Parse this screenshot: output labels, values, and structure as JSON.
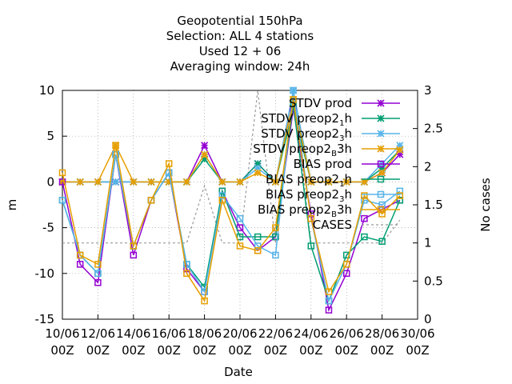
{
  "chart_data": {
    "type": "line",
    "title_lines": [
      "Geopotential 150hPa",
      "Selection: ALL      4 stations",
      "Used  12 + 06",
      "Averaging window: 24h"
    ],
    "xlabel": "Date",
    "ylabel": "m",
    "y2label": "No cases",
    "ylim": [
      -15,
      10
    ],
    "y2lim": [
      0,
      3
    ],
    "yticks": [
      -15,
      -10,
      -5,
      0,
      5,
      10
    ],
    "y2ticks": [
      0,
      0.5,
      1,
      1.5,
      2,
      2.5,
      3
    ],
    "xlim": [
      0,
      20
    ],
    "xticks": [
      {
        "x": 0,
        "l1": "10/06",
        "l2": "00Z"
      },
      {
        "x": 2,
        "l1": "12/06",
        "l2": "00Z"
      },
      {
        "x": 4,
        "l1": "14/06",
        "l2": "00Z"
      },
      {
        "x": 6,
        "l1": "16/06",
        "l2": "00Z"
      },
      {
        "x": 8,
        "l1": "18/06",
        "l2": "00Z"
      },
      {
        "x": 10,
        "l1": "20/06",
        "l2": "00Z"
      },
      {
        "x": 12,
        "l1": "22/06",
        "l2": "00Z"
      },
      {
        "x": 14,
        "l1": "24/06",
        "l2": "00Z"
      },
      {
        "x": 16,
        "l1": "26/06",
        "l2": "00Z"
      },
      {
        "x": 18,
        "l1": "28/06",
        "l2": "00Z"
      },
      {
        "x": 20,
        "l1": "30/06",
        "l2": "00Z"
      }
    ],
    "x": [
      0,
      1,
      2,
      3,
      4,
      5,
      6,
      7,
      8,
      9,
      10,
      11,
      12,
      13,
      14,
      15,
      16,
      17,
      18,
      19
    ],
    "series": [
      {
        "name": "STDV prod",
        "color": "#9400d3",
        "marker": "star",
        "dashed": false,
        "values": [
          0,
          0,
          0,
          0,
          0,
          0,
          0,
          0,
          4,
          0,
          0,
          2,
          0,
          9,
          0,
          0,
          0,
          0,
          1,
          3
        ]
      },
      {
        "name": "STDV preop2_1h",
        "color": "#009e73",
        "marker": "star",
        "dashed": false,
        "values": [
          0,
          0,
          0,
          0,
          0,
          0,
          0,
          0,
          2.5,
          0,
          0,
          2,
          0,
          8,
          0,
          0,
          0,
          0,
          1.5,
          3.5
        ]
      },
      {
        "name": "STDV preop2_3h",
        "color": "#56b4e9",
        "marker": "star",
        "dashed": false,
        "values": [
          0,
          0,
          0,
          0,
          0,
          0,
          0,
          0,
          3,
          0,
          0,
          1.5,
          0,
          10,
          0,
          0,
          0,
          0,
          2,
          4
        ]
      },
      {
        "name": "STDV preop2_B3h",
        "color": "#e69f00",
        "marker": "star",
        "dashed": false,
        "values": [
          0,
          0,
          0,
          4,
          0,
          0,
          0,
          0,
          3,
          0,
          0,
          1,
          0,
          9,
          0,
          0,
          0,
          0,
          1,
          3.5
        ]
      },
      {
        "name": "BIAS prod",
        "color": "#9400d3",
        "marker": "square",
        "dashed": false,
        "values": [
          0,
          -9,
          -11,
          3,
          -8,
          -2,
          1,
          -9.5,
          -12,
          -1,
          -5,
          -7.5,
          -6,
          8,
          -3.5,
          -14,
          -10,
          -4,
          -3,
          -2
        ]
      },
      {
        "name": "BIAS preop2_1h",
        "color": "#009e73",
        "marker": "square",
        "dashed": false,
        "values": [
          -2,
          -8,
          -10,
          3,
          -7,
          -2,
          1,
          -9,
          -11.5,
          -1,
          -6,
          -6,
          -6,
          8.5,
          -7,
          -13,
          -8,
          -6,
          -6.5,
          -2
        ]
      },
      {
        "name": "BIAS preop2_3h",
        "color": "#56b4e9",
        "marker": "square",
        "dashed": false,
        "values": [
          -2,
          -8,
          -10,
          3,
          -7,
          -2,
          1,
          -9,
          -12,
          -1.5,
          -4,
          -7,
          -8,
          10,
          -4,
          -13,
          -9,
          -2,
          -2.5,
          -1
        ]
      },
      {
        "name": "BIAS preop2_B3h",
        "color": "#e69f00",
        "marker": "square",
        "dashed": false,
        "values": [
          1,
          -8,
          -9,
          4,
          -7,
          -2,
          2,
          -10,
          -13,
          -2,
          -7,
          -7.5,
          -5,
          9,
          -4,
          -12,
          -9,
          -1.5,
          -3.5,
          -1.5
        ]
      },
      {
        "name": "CASES",
        "color": "#999999",
        "marker": "none",
        "dashed": true,
        "axis": "y2",
        "x": [
          0,
          1,
          2,
          3,
          4,
          5,
          6,
          7,
          8,
          9,
          10,
          11,
          12,
          13,
          14,
          15,
          16,
          17,
          18,
          19
        ],
        "values": [
          1,
          1,
          1,
          1,
          1,
          1,
          1,
          1,
          1.75,
          1,
          1,
          3,
          1,
          3,
          1,
          1,
          1,
          1,
          1,
          1.3
        ]
      }
    ],
    "legend_entries": [
      {
        "parts": [
          "STDV prod"
        ]
      },
      {
        "parts": [
          "STDV preop2",
          "1",
          "h"
        ]
      },
      {
        "parts": [
          "STDV preop2",
          "3",
          "h"
        ]
      },
      {
        "parts": [
          "STDV preop2",
          "B",
          "3h"
        ]
      },
      {
        "parts": [
          "BIAS prod"
        ]
      },
      {
        "parts": [
          "BIAS preop2",
          "1",
          "h"
        ]
      },
      {
        "parts": [
          "BIAS preop2",
          "3",
          "h"
        ]
      },
      {
        "parts": [
          "BIAS preop2",
          "B",
          "3h"
        ]
      },
      {
        "parts": [
          "CASES"
        ]
      }
    ],
    "legend_placement": "top-right",
    "grid": true
  }
}
